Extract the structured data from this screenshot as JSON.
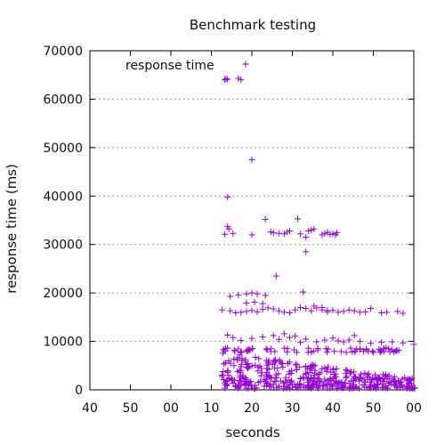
{
  "chart_data": {
    "type": "scatter",
    "title": "Benchmark testing",
    "xlabel": "seconds",
    "ylabel": "response time (ms)",
    "ylim": [
      0,
      70000
    ],
    "x_tick_labels": [
      "40",
      "50",
      "00",
      "10",
      "20",
      "30",
      "40",
      "50",
      "00"
    ],
    "y_ticks": [
      0,
      10000,
      20000,
      30000,
      40000,
      50000,
      60000,
      70000
    ],
    "y_tick_labels": [
      "0",
      "10000",
      "20000",
      "30000",
      "40000",
      "50000",
      "60000",
      "70000"
    ],
    "grid": "horizontal dotted",
    "legend": {
      "position": "top-left"
    },
    "series": [
      {
        "name": "response time",
        "color": "#9400d3",
        "marker": "plus",
        "x_unit": "seconds elapsed from the first tick label",
        "points": [
          [
            50,
            64000
          ],
          [
            50.5,
            64200
          ],
          [
            51,
            64100
          ],
          [
            55,
            64300
          ],
          [
            56,
            64000
          ],
          [
            60,
            47500
          ],
          [
            51,
            39800
          ],
          [
            51,
            33700
          ],
          [
            51.5,
            33200
          ],
          [
            50,
            32100
          ],
          [
            53,
            32300
          ],
          [
            60,
            32000
          ],
          [
            65,
            35200
          ],
          [
            67,
            32600
          ],
          [
            68,
            32400
          ],
          [
            70,
            32300
          ],
          [
            72,
            32200
          ],
          [
            73,
            32500
          ],
          [
            74,
            32800
          ],
          [
            77,
            35300
          ],
          [
            78,
            32200
          ],
          [
            80,
            31500
          ],
          [
            81,
            32800
          ],
          [
            82,
            33000
          ],
          [
            83,
            33200
          ],
          [
            86,
            32000
          ],
          [
            87,
            32300
          ],
          [
            88,
            32500
          ],
          [
            89,
            32100
          ],
          [
            90,
            32200
          ],
          [
            91,
            32000
          ],
          [
            91.5,
            32400
          ],
          [
            80,
            28500
          ],
          [
            69,
            23500
          ],
          [
            79,
            20200
          ],
          [
            52,
            19300
          ],
          [
            55,
            19600
          ],
          [
            58,
            19800
          ],
          [
            60,
            20000
          ],
          [
            62,
            19800
          ],
          [
            65,
            19500
          ],
          [
            49,
            16500
          ],
          [
            52,
            16300
          ],
          [
            54,
            15900
          ],
          [
            56,
            16000
          ],
          [
            58,
            16200
          ],
          [
            60,
            16400
          ],
          [
            62,
            16100
          ],
          [
            64,
            16600
          ],
          [
            66,
            16900
          ],
          [
            68,
            16700
          ],
          [
            70,
            16300
          ],
          [
            72,
            16000
          ],
          [
            74,
            15900
          ],
          [
            76,
            16500
          ],
          [
            78,
            17000
          ],
          [
            80,
            16800
          ],
          [
            82,
            16300
          ],
          [
            84,
            16900
          ],
          [
            86,
            16500
          ],
          [
            88,
            16100
          ],
          [
            90,
            16400
          ],
          [
            92,
            16000
          ],
          [
            94,
            16200
          ],
          [
            96,
            16500
          ],
          [
            98,
            16300
          ],
          [
            100,
            16000
          ],
          [
            102,
            16100
          ],
          [
            104,
            16800
          ],
          [
            108,
            15900
          ],
          [
            110,
            16000
          ],
          [
            114,
            16200
          ],
          [
            116,
            15800
          ],
          [
            58,
            17900
          ],
          [
            61,
            18100
          ],
          [
            64,
            17800
          ],
          [
            83,
            17300
          ],
          [
            86,
            17000
          ],
          [
            88,
            16400
          ],
          [
            51,
            11300
          ],
          [
            53,
            10800
          ],
          [
            56,
            10200
          ],
          [
            60,
            10600
          ],
          [
            64,
            10900
          ],
          [
            68,
            11200
          ],
          [
            70,
            10400
          ],
          [
            72,
            11600
          ],
          [
            74,
            10800
          ],
          [
            76,
            11100
          ],
          [
            78,
            9800
          ],
          [
            80,
            10500
          ],
          [
            84,
            9900
          ],
          [
            87,
            10300
          ],
          [
            90,
            10700
          ],
          [
            92,
            10100
          ],
          [
            94,
            9900
          ],
          [
            96,
            10300
          ],
          [
            98,
            11200
          ],
          [
            100,
            10000
          ],
          [
            104,
            9600
          ],
          [
            108,
            9800
          ],
          [
            112,
            9900
          ],
          [
            116,
            9700
          ],
          [
            120,
            9400
          ]
        ]
      }
    ]
  }
}
